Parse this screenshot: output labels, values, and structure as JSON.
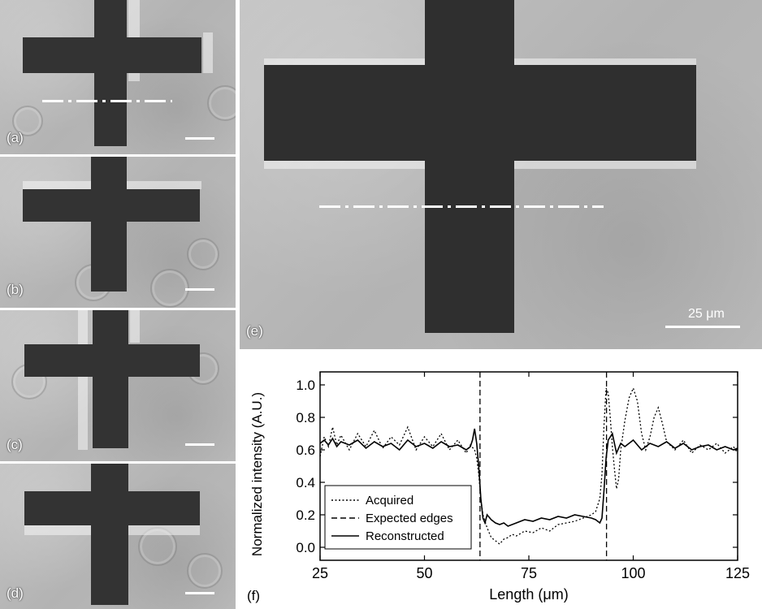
{
  "panels": {
    "a": "(a)",
    "b": "(b)",
    "c": "(c)",
    "d": "(d)",
    "e": "(e)",
    "f": "(f)"
  },
  "scale_label": "25 μm",
  "chart_data": {
    "type": "line",
    "xlabel": "Length (μm)",
    "ylabel": "Normalized intensity (A.U.)",
    "xlim": [
      25,
      125
    ],
    "ylim": [
      -0.08,
      1.08
    ],
    "xticks": [
      25,
      50,
      75,
      100,
      125
    ],
    "yticks": [
      0.0,
      0.2,
      0.4,
      0.6,
      0.8,
      1.0
    ],
    "xtick_labels": [
      "25",
      "50",
      "75",
      "100",
      "125"
    ],
    "ytick_labels": [
      "0.0",
      "0.2",
      "0.4",
      "0.6",
      "0.8",
      "1.0"
    ],
    "legend_position": "bottom-left",
    "series": [
      {
        "name": "Acquired",
        "style": "dotted",
        "x": [
          25,
          26,
          27,
          28,
          29,
          30,
          32,
          34,
          36,
          38,
          40,
          42,
          44,
          46,
          48,
          50,
          52,
          54,
          56,
          58,
          60,
          61,
          62,
          62.5,
          63,
          63.5,
          64,
          65,
          66,
          67,
          68,
          69,
          70,
          71,
          72,
          74,
          76,
          78,
          80,
          82,
          84,
          86,
          88,
          90,
          91,
          92,
          92.5,
          93,
          93.5,
          94,
          94.5,
          95,
          95.5,
          96,
          96.5,
          97,
          98,
          99,
          100,
          101,
          102,
          103,
          104,
          105,
          106,
          107,
          108,
          110,
          112,
          114,
          116,
          118,
          120,
          122,
          124,
          125
        ],
        "y": [
          0.56,
          0.68,
          0.62,
          0.74,
          0.63,
          0.69,
          0.6,
          0.7,
          0.62,
          0.72,
          0.61,
          0.68,
          0.63,
          0.74,
          0.6,
          0.68,
          0.62,
          0.7,
          0.6,
          0.66,
          0.58,
          0.63,
          0.6,
          0.55,
          0.45,
          0.3,
          0.2,
          0.12,
          0.06,
          0.04,
          0.02,
          0.05,
          0.06,
          0.08,
          0.07,
          0.1,
          0.09,
          0.12,
          0.1,
          0.14,
          0.15,
          0.16,
          0.18,
          0.2,
          0.22,
          0.3,
          0.45,
          0.75,
          0.98,
          0.95,
          0.8,
          0.62,
          0.48,
          0.36,
          0.42,
          0.6,
          0.78,
          0.92,
          0.98,
          0.9,
          0.7,
          0.6,
          0.68,
          0.8,
          0.86,
          0.76,
          0.65,
          0.6,
          0.66,
          0.58,
          0.63,
          0.6,
          0.64,
          0.58,
          0.62,
          0.58
        ]
      },
      {
        "name": "Expected edges",
        "style": "dashed",
        "vlines": [
          63.3,
          93.6
        ]
      },
      {
        "name": "Reconstructed",
        "style": "solid",
        "x": [
          25,
          26,
          27,
          28,
          29,
          30,
          32,
          34,
          36,
          38,
          40,
          42,
          44,
          46,
          48,
          50,
          52,
          54,
          56,
          58,
          60,
          61,
          61.5,
          62,
          62.5,
          63,
          63.5,
          64,
          64.5,
          65,
          66,
          67,
          68,
          69,
          70,
          72,
          74,
          76,
          78,
          80,
          82,
          84,
          86,
          88,
          90,
          91,
          92,
          92.5,
          93,
          93.5,
          94,
          95,
          96,
          97,
          98,
          100,
          102,
          104,
          106,
          108,
          110,
          112,
          114,
          116,
          118,
          120,
          122,
          124,
          125
        ],
        "y": [
          0.64,
          0.66,
          0.63,
          0.67,
          0.62,
          0.65,
          0.63,
          0.66,
          0.61,
          0.65,
          0.62,
          0.64,
          0.6,
          0.66,
          0.62,
          0.64,
          0.61,
          0.65,
          0.62,
          0.63,
          0.6,
          0.62,
          0.66,
          0.73,
          0.64,
          0.5,
          0.3,
          0.18,
          0.15,
          0.2,
          0.17,
          0.15,
          0.14,
          0.15,
          0.13,
          0.15,
          0.17,
          0.16,
          0.18,
          0.17,
          0.19,
          0.18,
          0.2,
          0.19,
          0.18,
          0.17,
          0.15,
          0.18,
          0.35,
          0.55,
          0.66,
          0.7,
          0.58,
          0.64,
          0.62,
          0.66,
          0.6,
          0.64,
          0.62,
          0.65,
          0.61,
          0.64,
          0.6,
          0.62,
          0.63,
          0.6,
          0.62,
          0.6,
          0.61
        ]
      }
    ]
  }
}
